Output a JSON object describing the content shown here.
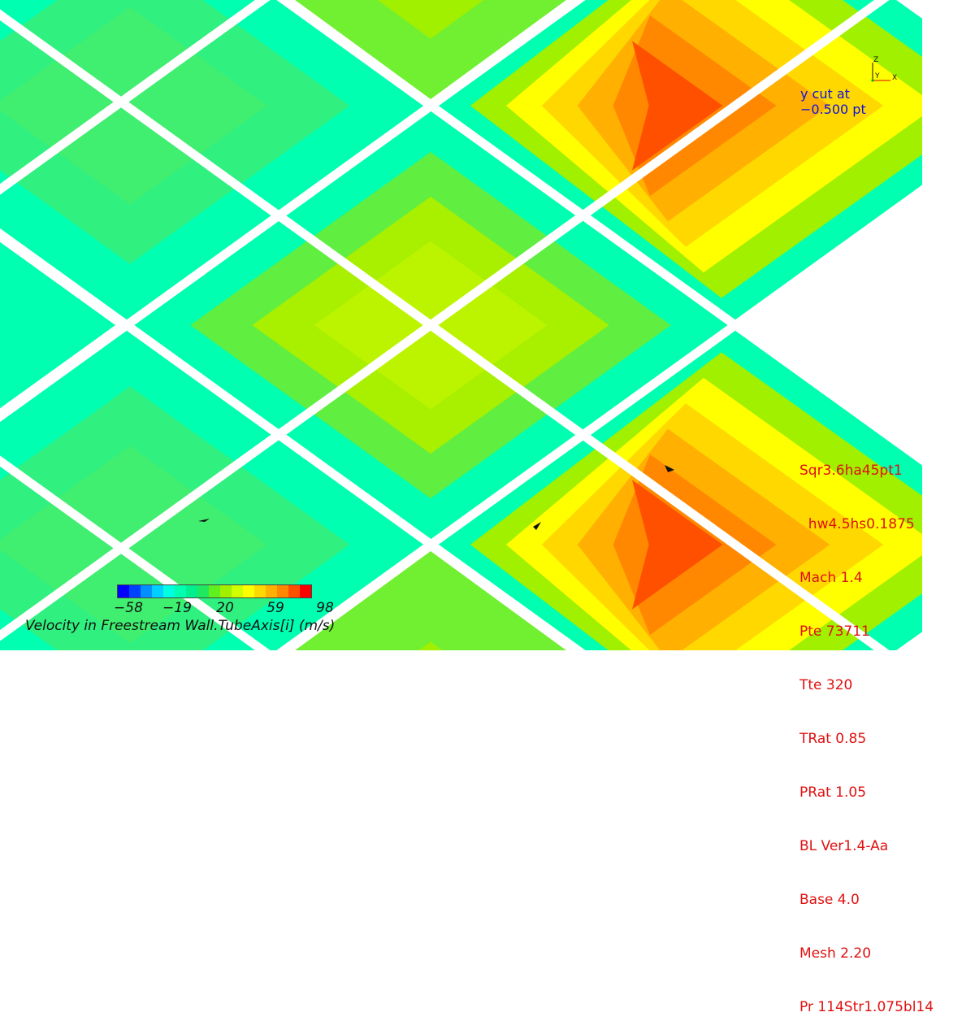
{
  "view": {
    "cut_label_lines": [
      "y cut at",
      "−0.500 pt"
    ],
    "triad": {
      "up": "Z",
      "depth": "Y",
      "right": "X"
    }
  },
  "case_info": [
    "Sqr3.6ha45pt1",
    "  hw4.5hs0.1875",
    "Mach 1.4",
    "Pte 73711",
    "Tte 320",
    "TRat 0.85",
    "PRat 1.05",
    "BL Ver1.4-Aa",
    "Base 4.0",
    "Mesh 2.20",
    "Pr 114Str1.075bl14"
  ],
  "legend": {
    "title": "Velocity in Freestream Wall.TubeAxis[i] (m/s)",
    "ticks": [
      "−58",
      "−19",
      "20",
      "59",
      "98"
    ],
    "bands": [
      "#0000ff",
      "#0040ff",
      "#0090ff",
      "#00d0ff",
      "#00ffe0",
      "#00ffb0",
      "#00f090",
      "#20e860",
      "#60f020",
      "#a0f000",
      "#d0ff00",
      "#ffff00",
      "#ffd800",
      "#ffb000",
      "#ff8800",
      "#ff5000",
      "#ff0000"
    ]
  },
  "colors": {
    "gap": "#ffffff",
    "cut_label": "#1010e0",
    "case_info": "#e01010"
  },
  "regions": [
    {
      "name": "contour-region-top-left",
      "colors": [
        "#00ffb0",
        "#30f080",
        "#40ee70"
      ]
    },
    {
      "name": "contour-region-top-center",
      "colors": [
        "#70f030",
        "#a0f000",
        "#b8f400"
      ]
    },
    {
      "name": "contour-region-top-right",
      "colors": [
        "#00ffb0",
        "#a0f000",
        "#ffff00",
        "#ffd800",
        "#ffb000",
        "#ff8800",
        "#ff5000"
      ]
    },
    {
      "name": "contour-region-left-edge",
      "colors": [
        "#00ffb0",
        "#20f090"
      ]
    },
    {
      "name": "contour-region-center",
      "colors": [
        "#00ffb0",
        "#60ee40",
        "#a8f000",
        "#bcf400"
      ]
    },
    {
      "name": "contour-region-bottom-left",
      "colors": [
        "#00ffb0",
        "#30f080",
        "#40ee70"
      ]
    },
    {
      "name": "contour-region-bottom-center",
      "colors": [
        "#70f030",
        "#a0f000"
      ]
    },
    {
      "name": "contour-region-bottom-right",
      "colors": [
        "#00ffb0",
        "#a0f000",
        "#ffff00",
        "#ffd800",
        "#ffb000",
        "#ff8800",
        "#ff5000"
      ]
    }
  ]
}
